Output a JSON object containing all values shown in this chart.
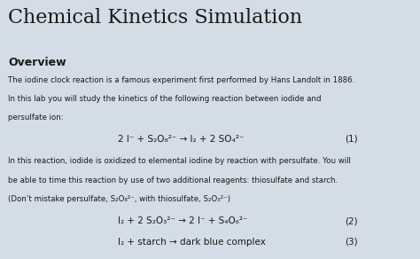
{
  "title": "Chemical Kinetics Simulation",
  "overview_header": "Overview",
  "para1_line1": "The iodine clock reaction is a famous experiment first performed by Hans Landolt in 1886.",
  "para1_line2": "In this lab you will study the kinetics of the following reaction between iodide and",
  "para1_line3": "persulfate ion:",
  "eq1_left": "2 I⁻ + S₂O₈²⁻ → I₂ + 2 SO₄²⁻",
  "eq1_num": "(1)",
  "para2_line1": "In this reaction, iodide is oxidized to elemental iodine by reaction with persulfate. You will",
  "para2_line2": "be able to time this reaction by use of two additional reagents: thiosulfate and starch.",
  "para2_line3": "(Don’t mistake persulfate, S₂O₈²⁻, with thiosulfate, S₂O₃²⁻)",
  "eq2_left": "I₂ + 2 S₂O₃²⁻ → 2 I⁻ + S₄O₆²⁻",
  "eq2_num": "(2)",
  "eq3_left": "I₂ + starch → dark blue complex",
  "eq3_num": "(3)",
  "bg_color": "#d4dde5",
  "text_color": "#1a1a1a",
  "title_fontsize": 16,
  "header_fontsize": 9,
  "body_fontsize": 6.2,
  "eq_fontsize": 7.5
}
